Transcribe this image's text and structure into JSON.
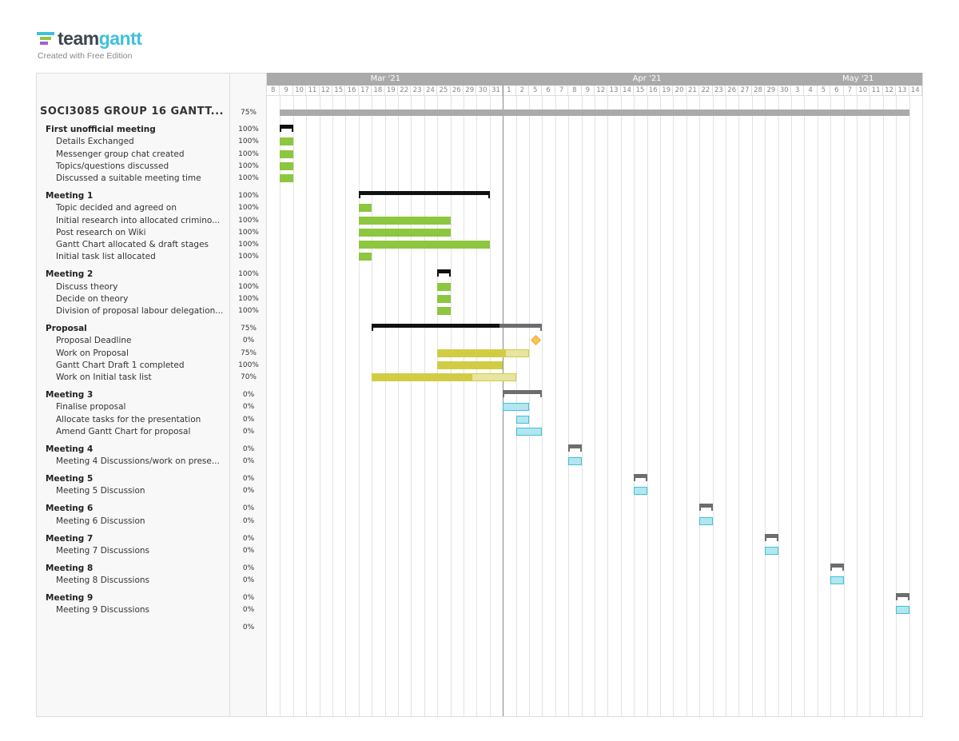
{
  "logo": {
    "word_a": "team",
    "word_b": "gantt",
    "subtitle": "Created with Free Edition"
  },
  "colors": {
    "green": "#8dc63f",
    "yellow": "#d2cc45",
    "yellow_light": "#e8e5a0",
    "blue_fill": "#b2e6f0",
    "blue_border": "#3ec1d9",
    "group_done": "#111111",
    "group_todo": "#6d6d6d",
    "project": "#aaaaaa",
    "milestone": "#f9c25f"
  },
  "chart_data": {
    "type": "gantt",
    "today": "2021-03-31",
    "months": [
      {
        "label": "Mar '21",
        "first": "2021-03-08"
      },
      {
        "label": "Apr '21",
        "first": "2021-04-01"
      },
      {
        "label": "May '21",
        "first": "2021-05-03"
      }
    ],
    "days": [
      "2021-03-08",
      "2021-03-09",
      "2021-03-10",
      "2021-03-11",
      "2021-03-12",
      "2021-03-15",
      "2021-03-16",
      "2021-03-17",
      "2021-03-18",
      "2021-03-19",
      "2021-03-22",
      "2021-03-23",
      "2021-03-24",
      "2021-03-25",
      "2021-03-26",
      "2021-03-29",
      "2021-03-30",
      "2021-03-31",
      "2021-04-01",
      "2021-04-02",
      "2021-04-05",
      "2021-04-06",
      "2021-04-07",
      "2021-04-08",
      "2021-04-09",
      "2021-04-12",
      "2021-04-13",
      "2021-04-14",
      "2021-04-15",
      "2021-04-16",
      "2021-04-19",
      "2021-04-20",
      "2021-04-21",
      "2021-04-22",
      "2021-04-23",
      "2021-04-26",
      "2021-04-27",
      "2021-04-28",
      "2021-04-29",
      "2021-04-30",
      "2021-05-03",
      "2021-05-04",
      "2021-05-05",
      "2021-05-06",
      "2021-05-07",
      "2021-05-10",
      "2021-05-11",
      "2021-05-12",
      "2021-05-13",
      "2021-05-14"
    ],
    "day_labels": [
      "8",
      "9",
      "10",
      "11",
      "12",
      "15",
      "16",
      "17",
      "18",
      "19",
      "22",
      "23",
      "24",
      "25",
      "26",
      "29",
      "30",
      "31",
      "1",
      "2",
      "5",
      "6",
      "7",
      "8",
      "9",
      "12",
      "13",
      "14",
      "15",
      "16",
      "19",
      "20",
      "21",
      "22",
      "23",
      "26",
      "27",
      "28",
      "29",
      "30",
      "3",
      "4",
      "5",
      "6",
      "7",
      "10",
      "11",
      "12",
      "13",
      "14"
    ],
    "project": {
      "name": "SOCI3085 GROUP 16 GANTT...",
      "progress": "75%",
      "start": "2021-03-09",
      "end": "2021-05-13"
    },
    "groups": [
      {
        "name": "First unofficial meeting",
        "progress": "100%",
        "pct": 100,
        "start": "2021-03-09",
        "end": "2021-03-09",
        "color": "green",
        "tasks": [
          {
            "name": "Details Exchanged",
            "progress": "100%",
            "pct": 100,
            "start": "2021-03-09",
            "end": "2021-03-09"
          },
          {
            "name": "Messenger group chat created",
            "progress": "100%",
            "pct": 100,
            "start": "2021-03-09",
            "end": "2021-03-09"
          },
          {
            "name": "Topics/questions discussed",
            "progress": "100%",
            "pct": 100,
            "start": "2021-03-09",
            "end": "2021-03-09"
          },
          {
            "name": "Discussed a suitable meeting time",
            "progress": "100%",
            "pct": 100,
            "start": "2021-03-09",
            "end": "2021-03-09"
          }
        ]
      },
      {
        "name": "Meeting 1",
        "progress": "100%",
        "pct": 100,
        "start": "2021-03-17",
        "end": "2021-03-30",
        "color": "green",
        "tasks": [
          {
            "name": "Topic decided and agreed on",
            "progress": "100%",
            "pct": 100,
            "start": "2021-03-17",
            "end": "2021-03-17"
          },
          {
            "name": "Initial research into allocated crimino...",
            "progress": "100%",
            "pct": 100,
            "start": "2021-03-17",
            "end": "2021-03-25"
          },
          {
            "name": "Post research on Wiki",
            "progress": "100%",
            "pct": 100,
            "start": "2021-03-17",
            "end": "2021-03-25"
          },
          {
            "name": "Gantt Chart allocated & draft stages",
            "progress": "100%",
            "pct": 100,
            "start": "2021-03-17",
            "end": "2021-03-30"
          },
          {
            "name": "Initial task list allocated",
            "progress": "100%",
            "pct": 100,
            "start": "2021-03-17",
            "end": "2021-03-17"
          }
        ]
      },
      {
        "name": "Meeting 2",
        "progress": "100%",
        "pct": 100,
        "start": "2021-03-25",
        "end": "2021-03-25",
        "color": "green",
        "tasks": [
          {
            "name": "Discuss theory",
            "progress": "100%",
            "pct": 100,
            "start": "2021-03-25",
            "end": "2021-03-25"
          },
          {
            "name": "Decide on theory",
            "progress": "100%",
            "pct": 100,
            "start": "2021-03-25",
            "end": "2021-03-25"
          },
          {
            "name": "Division of proposal labour delegation...",
            "progress": "100%",
            "pct": 100,
            "start": "2021-03-25",
            "end": "2021-03-25"
          }
        ]
      },
      {
        "name": "Proposal",
        "progress": "75%",
        "pct": 75,
        "start": "2021-03-18",
        "end": "2021-04-05",
        "color": "yellow",
        "tasks": [
          {
            "name": "Proposal Deadline",
            "progress": "0%",
            "pct": 0,
            "start": "2021-04-05",
            "end": "2021-04-05",
            "milestone": true
          },
          {
            "name": "Work on Proposal",
            "progress": "75%",
            "pct": 75,
            "start": "2021-03-25",
            "end": "2021-04-02"
          },
          {
            "name": "Gantt Chart Draft 1 completed",
            "progress": "100%",
            "pct": 100,
            "start": "2021-03-25",
            "end": "2021-03-31"
          },
          {
            "name": "Work on Initial task list",
            "progress": "70%",
            "pct": 70,
            "start": "2021-03-18",
            "end": "2021-04-01"
          }
        ]
      },
      {
        "name": "Meeting 3",
        "progress": "0%",
        "pct": 0,
        "start": "2021-04-01",
        "end": "2021-04-05",
        "color": "blue",
        "tasks": [
          {
            "name": "Finalise proposal",
            "progress": "0%",
            "pct": 0,
            "start": "2021-04-01",
            "end": "2021-04-02"
          },
          {
            "name": "Allocate tasks for the presentation",
            "progress": "0%",
            "pct": 0,
            "start": "2021-04-02",
            "end": "2021-04-02"
          },
          {
            "name": "Amend Gantt Chart for proposal",
            "progress": "0%",
            "pct": 0,
            "start": "2021-04-02",
            "end": "2021-04-05"
          }
        ]
      },
      {
        "name": "Meeting 4",
        "progress": "0%",
        "pct": 0,
        "start": "2021-04-08",
        "end": "2021-04-08",
        "color": "blue",
        "tasks": [
          {
            "name": "Meeting 4 Discussions/work on prese...",
            "progress": "0%",
            "pct": 0,
            "start": "2021-04-08",
            "end": "2021-04-08"
          }
        ]
      },
      {
        "name": "Meeting 5",
        "progress": "0%",
        "pct": 0,
        "start": "2021-04-15",
        "end": "2021-04-15",
        "color": "blue",
        "tasks": [
          {
            "name": "Meeting 5 Discussion",
            "progress": "0%",
            "pct": 0,
            "start": "2021-04-15",
            "end": "2021-04-15"
          }
        ]
      },
      {
        "name": "Meeting 6",
        "progress": "0%",
        "pct": 0,
        "start": "2021-04-22",
        "end": "2021-04-22",
        "color": "blue",
        "tasks": [
          {
            "name": "Meeting 6 Discussion",
            "progress": "0%",
            "pct": 0,
            "start": "2021-04-22",
            "end": "2021-04-22"
          }
        ]
      },
      {
        "name": "Meeting 7",
        "progress": "0%",
        "pct": 0,
        "start": "2021-04-29",
        "end": "2021-04-29",
        "color": "blue",
        "tasks": [
          {
            "name": "Meeting 7 Discussions",
            "progress": "0%",
            "pct": 0,
            "start": "2021-04-29",
            "end": "2021-04-29"
          }
        ]
      },
      {
        "name": "Meeting 8",
        "progress": "0%",
        "pct": 0,
        "start": "2021-05-06",
        "end": "2021-05-06",
        "color": "blue",
        "tasks": [
          {
            "name": "Meeting 8 Discussions",
            "progress": "0%",
            "pct": 0,
            "start": "2021-05-06",
            "end": "2021-05-06"
          }
        ]
      },
      {
        "name": "Meeting 9",
        "progress": "0%",
        "pct": 0,
        "start": "2021-05-13",
        "end": "2021-05-13",
        "color": "blue",
        "tasks": [
          {
            "name": "Meeting 9 Discussions",
            "progress": "0%",
            "pct": 0,
            "start": "2021-05-13",
            "end": "2021-05-13"
          }
        ]
      }
    ],
    "trailing_progress": "0%"
  }
}
